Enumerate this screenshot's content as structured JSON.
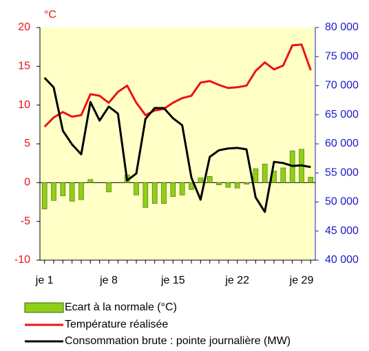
{
  "chart_data": {
    "type": "bar-line",
    "title": "°C",
    "categories": [
      "je 1",
      null,
      null,
      null,
      null,
      null,
      null,
      "je 8",
      null,
      null,
      null,
      null,
      null,
      null,
      "je 15",
      null,
      null,
      null,
      null,
      null,
      null,
      "je 22",
      null,
      null,
      null,
      null,
      null,
      null,
      "je 29",
      null
    ],
    "series": [
      {
        "name": "Ecart à la normale (°C)",
        "kind": "bar",
        "color": "#8fce1a",
        "values": [
          -3.4,
          -2.3,
          -1.7,
          -2.4,
          -2.2,
          0.4,
          0,
          -1.2,
          0,
          1.0,
          -1.6,
          -3.2,
          -2.7,
          -2.7,
          -1.8,
          -1.6,
          -0.9,
          0.6,
          0.8,
          -0.3,
          -0.6,
          -0.7,
          -0.2,
          1.8,
          2.4,
          1.5,
          1.9,
          4.1,
          4.3,
          0.7
        ]
      },
      {
        "name": "Température réalisée",
        "kind": "line",
        "color": "#ee1111",
        "values": [
          7.2,
          8.4,
          9.1,
          8.5,
          8.7,
          11.4,
          11.2,
          10.3,
          11.7,
          12.5,
          10.3,
          8.7,
          9.3,
          9.5,
          10.3,
          10.9,
          11.2,
          12.9,
          13.1,
          12.6,
          12.2,
          12.3,
          12.5,
          14.4,
          15.5,
          14.6,
          15.1,
          17.7,
          17.8,
          14.5
        ]
      },
      {
        "name": "Consommation brute : pointe journalière (MW)",
        "kind": "line",
        "axis": "y2",
        "color": "#000000",
        "values": [
          71360,
          69700,
          62250,
          59900,
          58200,
          67200,
          64000,
          66400,
          65200,
          53700,
          54900,
          64300,
          66150,
          66150,
          64400,
          63200,
          54200,
          50400,
          57750,
          58900,
          59200,
          59300,
          59050,
          50800,
          48300,
          56900,
          56700,
          56200,
          56300,
          56000
        ]
      }
    ],
    "ylim": [
      -10,
      20
    ],
    "yticks": [
      -10,
      -5,
      0,
      5,
      10,
      15,
      20
    ],
    "y2lim": [
      40000,
      80000
    ],
    "y2ticks": [
      {
        "value": 40000,
        "label": "40 000"
      },
      {
        "value": 45000,
        "label": "45 000"
      },
      {
        "value": 50000,
        "label": "50 000"
      },
      {
        "value": 55000,
        "label": "55 000"
      },
      {
        "value": 60000,
        "label": "60 000"
      },
      {
        "value": 65000,
        "label": "65 000"
      },
      {
        "value": 70000,
        "label": "70 000"
      },
      {
        "value": 75000,
        "label": "75 000"
      },
      {
        "value": 80000,
        "label": "80 000"
      }
    ],
    "background": "#ffffc6",
    "y_color": "#ee1111",
    "y2_color": "#1a1acc"
  }
}
